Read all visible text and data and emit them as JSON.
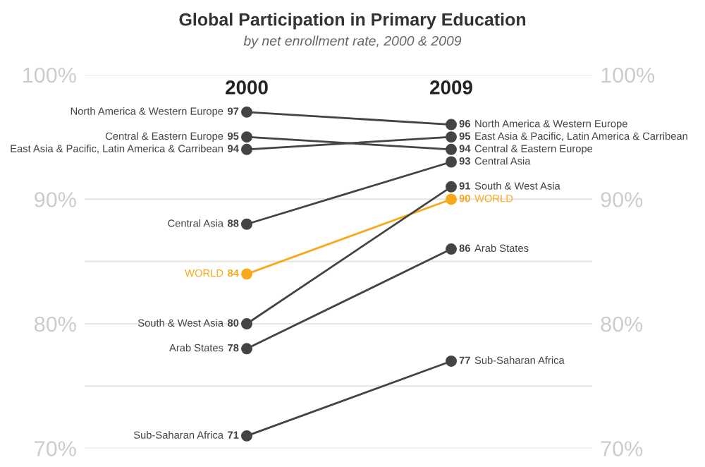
{
  "chart_data": {
    "type": "line",
    "title": "Global Participation in Primary Education",
    "subtitle": "by net enrollment rate, 2000 & 2009",
    "categories": [
      "2000",
      "2009"
    ],
    "series": [
      {
        "name": "North America & Western Europe",
        "color": "#444444",
        "values": [
          97,
          96
        ]
      },
      {
        "name": "Central & Eastern Europe",
        "color": "#444444",
        "values": [
          95,
          94
        ]
      },
      {
        "name": "East Asia & Pacific, Latin America & Carribean",
        "color": "#444444",
        "values": [
          94,
          95
        ]
      },
      {
        "name": "Central Asia",
        "color": "#444444",
        "values": [
          88,
          93
        ]
      },
      {
        "name": "WORLD",
        "color": "#f7a81b",
        "values": [
          84,
          90
        ]
      },
      {
        "name": "South & West Asia",
        "color": "#444444",
        "values": [
          80,
          91
        ]
      },
      {
        "name": "Arab States",
        "color": "#444444",
        "values": [
          78,
          86
        ]
      },
      {
        "name": "Sub-Saharan Africa",
        "color": "#444444",
        "values": [
          71,
          77
        ]
      }
    ],
    "ylim": [
      70,
      100
    ],
    "yticks": [
      {
        "value": 70,
        "label": "70%"
      },
      {
        "value": 75,
        "label": null
      },
      {
        "value": 80,
        "label": "80%"
      },
      {
        "value": 85,
        "label": null
      },
      {
        "value": 90,
        "label": "90%"
      },
      {
        "value": 100,
        "label": "100%"
      }
    ],
    "y2lim": [
      70,
      100
    ],
    "y2ticks": [
      {
        "value": 70,
        "label": "70%"
      },
      {
        "value": 75,
        "label": null
      },
      {
        "value": 80,
        "label": "80%"
      },
      {
        "value": 85,
        "label": null
      },
      {
        "value": 90,
        "label": "90%"
      },
      {
        "value": 100,
        "label": "100%"
      }
    ],
    "grid": "y",
    "marker": "circle",
    "line_style": "solid",
    "data_labels": true
  }
}
